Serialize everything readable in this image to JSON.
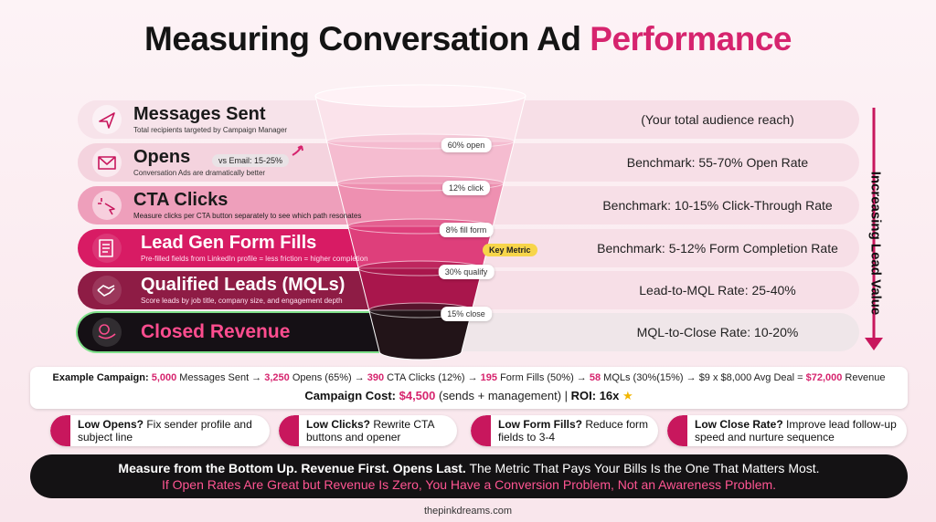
{
  "title": {
    "main": "Measuring Conversation Ad",
    "highlight": "Performance"
  },
  "stages": [
    {
      "name": "Messages Sent",
      "description": "Total recipients targeted by Campaign Manager",
      "benchmark": "(Your total audience reach)"
    },
    {
      "name": "Opens",
      "badge": "vs Email: 15-25%",
      "description": "Conversation Ads are dramatically better",
      "benchmark": "Benchmark: 55-70% Open Rate"
    },
    {
      "name": "CTA Clicks",
      "description": "Measure clicks per CTA button separately to see which path resonates",
      "benchmark": "Benchmark: 10-15% Click-Through Rate"
    },
    {
      "name": "Lead Gen Form Fills",
      "badge": "Key Metric",
      "description": "Pre-filled fields from LinkedIn profile = less friction = higher completion",
      "benchmark": "Benchmark: 5-12% Form Completion Rate"
    },
    {
      "name": "Qualified Leads (MQLs)",
      "description": "Score leads by job title, company size, and engagement depth",
      "benchmark": "Lead-to-MQL Rate: 25-40%"
    },
    {
      "name": "Closed Revenue",
      "benchmark": "MQL-to-Close Rate: 10-20%"
    }
  ],
  "conversion_rates": [
    "60% open",
    "12% click",
    "8% fill form",
    "30% qualify",
    "15% close"
  ],
  "side_label": "Increasing Lead Value",
  "campaign": {
    "example": [
      {
        "text": "Example Campaign: ",
        "style": "label"
      },
      {
        "text": "5,000",
        "style": "number"
      },
      {
        "text": " Messages Sent → ",
        "style": "plain"
      },
      {
        "text": "3,250",
        "style": "number"
      },
      {
        "text": " Opens (65%) → ",
        "style": "plain"
      },
      {
        "text": "390",
        "style": "number"
      },
      {
        "text": " CTA Clicks (12%) → ",
        "style": "plain"
      },
      {
        "text": "195",
        "style": "number"
      },
      {
        "text": " Form Fills (50%) → ",
        "style": "plain"
      },
      {
        "text": "58",
        "style": "number"
      },
      {
        "text": " MQLs (30%(15%) → $9 x $8,000 Avg Deal = ",
        "style": "plain"
      },
      {
        "text": "$72,000",
        "style": "number"
      },
      {
        "text": " Revenue",
        "style": "plain"
      }
    ],
    "cost": [
      {
        "text": "Campaign Cost: ",
        "style": "label"
      },
      {
        "text": "$4,500",
        "style": "number"
      },
      {
        "text": " (sends + management) | ",
        "style": "plain"
      },
      {
        "text": "ROI: 16x",
        "style": "label"
      }
    ]
  },
  "tips": [
    {
      "title": "Low Opens?",
      "text": "Fix sender profile and subject line"
    },
    {
      "title": "Low Clicks?",
      "text": "Rewrite CTA buttons and opener"
    },
    {
      "title": "Low Form Fills?",
      "text": "Reduce form fields to 3-4"
    },
    {
      "title": "Low Close Rate?",
      "text": "Improve lead follow-up speed and nurture sequence"
    }
  ],
  "banner": {
    "line1_bold": "Measure from the Bottom Up. Revenue First. Opens Last.",
    "line1": " The Metric That Pays Your Bills Is the One That Matters Most.",
    "line2": "If Open Rates Are Great but Revenue Is Zero, You Have a Conversion Problem, Not an Awareness Problem."
  },
  "footer": "thepinkdreams.com"
}
